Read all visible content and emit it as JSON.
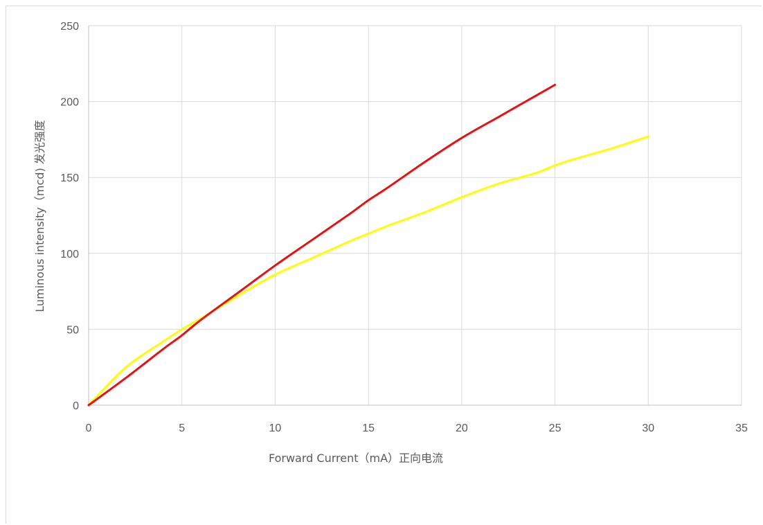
{
  "chart_data": {
    "type": "line",
    "title": "",
    "xlabel": "Forward Current（mA）正向电流",
    "ylabel": "Luminous intensity（mcd) 发光强度",
    "xlim": [
      0,
      35
    ],
    "ylim": [
      0,
      250
    ],
    "xticks": [
      0,
      5,
      10,
      15,
      20,
      25,
      30,
      35
    ],
    "yticks": [
      0,
      50,
      100,
      150,
      200,
      250
    ],
    "grid": true,
    "legend": "none",
    "series": [
      {
        "color": "#ffff00",
        "x": [
          0,
          2,
          4,
          5,
          6,
          8,
          10,
          12,
          14,
          15,
          16,
          18,
          20,
          22,
          24,
          25,
          26,
          28,
          30
        ],
        "y": [
          0,
          25,
          42,
          50,
          57,
          72,
          86,
          97,
          108,
          113,
          118,
          127,
          137,
          146,
          153,
          158,
          162,
          169,
          177
        ]
      },
      {
        "color": "#e81010",
        "x": [
          0,
          2,
          4,
          5,
          6,
          8,
          10,
          12,
          14,
          15,
          16,
          18,
          20,
          22,
          24,
          25
        ],
        "y": [
          0,
          18,
          37,
          46,
          56,
          74,
          92,
          109,
          126,
          135,
          143,
          160,
          176,
          190,
          204,
          211
        ]
      }
    ]
  }
}
